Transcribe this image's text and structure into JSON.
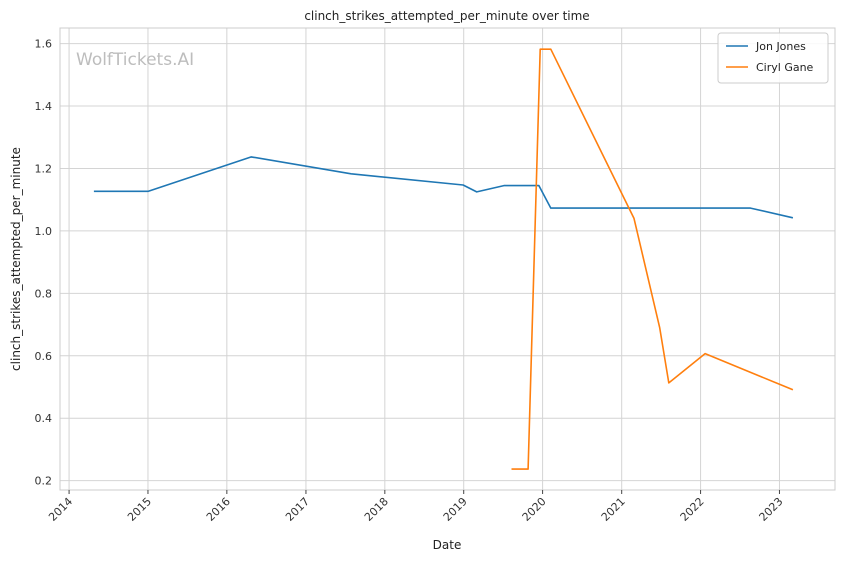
{
  "chart_data": {
    "type": "line",
    "title": "clinch_strikes_attempted_per_minute over time",
    "xlabel": "Date",
    "ylabel": "clinch_strikes_attempted_per_minute",
    "watermark": "WolfTickets.AI",
    "xlim": [
      "2013-11-20",
      "2023-09-15"
    ],
    "ylim": [
      0.17,
      1.65
    ],
    "x_ticks": [
      "2014",
      "2015",
      "2016",
      "2017",
      "2018",
      "2019",
      "2020",
      "2021",
      "2022",
      "2023"
    ],
    "y_ticks": [
      0.2,
      0.4,
      0.6,
      0.8,
      1.0,
      1.2,
      1.4,
      1.6
    ],
    "y_tick_labels": [
      "0.2",
      "0.4",
      "0.6",
      "0.8",
      "1.0",
      "1.2",
      "1.4",
      "1.6"
    ],
    "grid": true,
    "legend_position": "top-right",
    "series": [
      {
        "name": "Jon Jones",
        "color": "#1f77b4",
        "points": [
          [
            "2014-04-26",
            1.127
          ],
          [
            "2015-01-03",
            1.127
          ],
          [
            "2016-04-23",
            1.237
          ],
          [
            "2017-07-29",
            1.183
          ],
          [
            "2018-12-29",
            1.147
          ],
          [
            "2019-03-02",
            1.125
          ],
          [
            "2019-07-06",
            1.145
          ],
          [
            "2019-12-15",
            1.145
          ],
          [
            "2020-02-08",
            1.073
          ],
          [
            "2021-06-01",
            1.073
          ],
          [
            "2022-08-20",
            1.073
          ],
          [
            "2023-03-04",
            1.042
          ]
        ]
      },
      {
        "name": "Ciryl Gane",
        "color": "#ff7f0e",
        "points": [
          [
            "2019-08-10",
            0.237
          ],
          [
            "2019-10-26",
            0.237
          ],
          [
            "2019-12-21",
            1.582
          ],
          [
            "2020-02-08",
            1.582
          ],
          [
            "2021-02-27",
            1.04
          ],
          [
            "2021-06-26",
            0.69
          ],
          [
            "2021-08-07",
            0.513
          ],
          [
            "2022-01-22",
            0.607
          ],
          [
            "2023-03-04",
            0.491
          ]
        ]
      }
    ]
  }
}
